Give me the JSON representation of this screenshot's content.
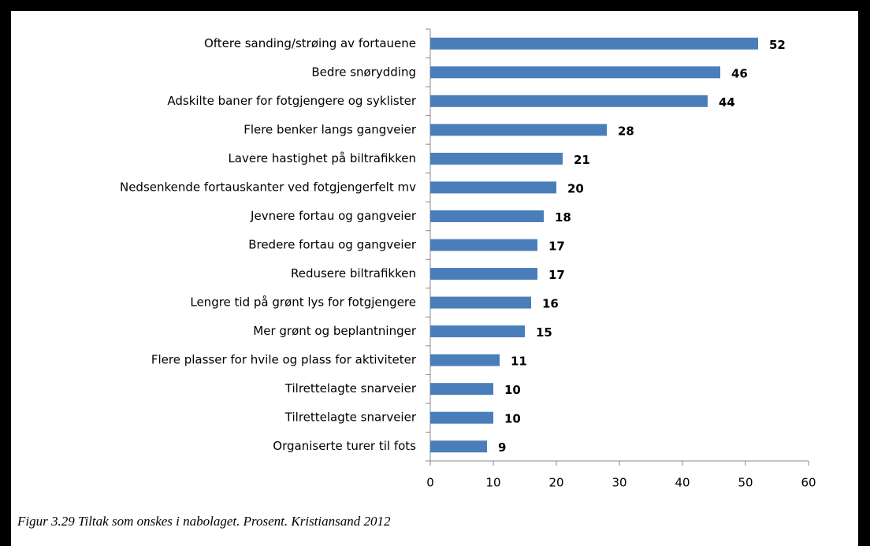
{
  "chart_data": {
    "type": "bar",
    "orientation": "horizontal",
    "caption": "Figur 3.29 Tiltak som onskes i nabolaget. Prosent. Kristiansand 2012",
    "categories": [
      "Oftere sanding/strøing av fortauene",
      "Bedre snørydding",
      "Adskilte baner for fotgjengere og syklister",
      "Flere benker langs gangveier",
      "Lavere hastighet på biltrafikken",
      "Nedsenkende fortauskanter ved fotgjengerfelt mv",
      "Jevnere fortau og gangveier",
      "Bredere fortau og gangveier",
      "Redusere biltrafikken",
      "Lengre tid på grønt lys for fotgjengere",
      "Mer grønt og beplantninger",
      "Flere plasser for hvile og plass for aktiviteter",
      "Tilrettelagte snarveier",
      "Tilrettelagte snarveier",
      "Organiserte turer til fots"
    ],
    "values": [
      52,
      46,
      44,
      28,
      21,
      20,
      18,
      17,
      17,
      16,
      15,
      11,
      10,
      10,
      9
    ],
    "color": "#4a7ebb",
    "xlim": [
      0,
      60
    ],
    "xticks": [
      0,
      10,
      20,
      30,
      40,
      50,
      60
    ]
  }
}
